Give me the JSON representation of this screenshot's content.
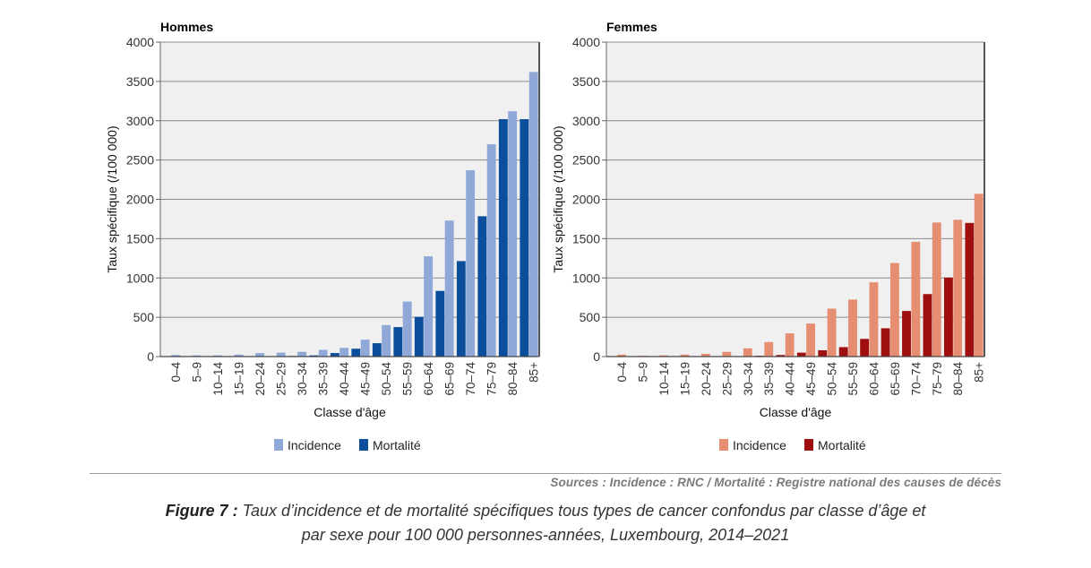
{
  "figure": {
    "sources": "Sources : Incidence : RNC / Mortalité : Registre national des causes de décès",
    "caption_label": "Figure 7 :",
    "caption_line1": "Taux d’incidence et de mortalité spécifiques tous types de cancer confondus par classe d’âge et",
    "caption_line2": "par sexe pour 100 000 personnes-années, Luxembourg, 2014–2021"
  },
  "chart_data": [
    {
      "type": "bar",
      "title": "Hommes",
      "xlabel": "Classe d'âge",
      "ylabel": "Taux spécifique (/100 000)",
      "ylim": [
        0,
        4000
      ],
      "yticks": [
        0,
        500,
        1000,
        1500,
        2000,
        2500,
        3000,
        3500,
        4000
      ],
      "grid": true,
      "legend_position": "bottom",
      "categories": [
        "0–4",
        "5–9",
        "10–14",
        "15–19",
        "20–24",
        "25–29",
        "30–34",
        "35–39",
        "40–44",
        "45–49",
        "50–54",
        "55–59",
        "60–64",
        "65–69",
        "70–74",
        "75–79",
        "80–84",
        "85+"
      ],
      "series": [
        {
          "name": "Incidence",
          "color": "#8FA8D8",
          "values": [
            20,
            15,
            15,
            25,
            45,
            50,
            60,
            85,
            110,
            215,
            400,
            700,
            1275,
            1730,
            2370,
            2700,
            3120,
            3620
          ]
        },
        {
          "name": "Mortalité",
          "color": "#0B4F9C",
          "values": [
            3,
            3,
            3,
            3,
            5,
            5,
            8,
            15,
            45,
            100,
            170,
            375,
            505,
            835,
            1215,
            1785,
            3020,
            3020
          ]
        }
      ]
    },
    {
      "type": "bar",
      "title": "Femmes",
      "xlabel": "Classe d'âge",
      "ylabel": "Taux spécifique (/100 000)",
      "ylim": [
        0,
        4000
      ],
      "yticks": [
        0,
        500,
        1000,
        1500,
        2000,
        2500,
        3000,
        3500,
        4000
      ],
      "grid": true,
      "legend_position": "bottom",
      "categories": [
        "0–4",
        "5–9",
        "10–14",
        "15–19",
        "20–24",
        "25–29",
        "30–34",
        "35–39",
        "40–44",
        "45–49",
        "50–54",
        "55–59",
        "60–64",
        "65–69",
        "70–74",
        "75–79",
        "80–84",
        "85+"
      ],
      "series": [
        {
          "name": "Incidence",
          "color": "#E58E72",
          "values": [
            25,
            10,
            15,
            25,
            35,
            60,
            105,
            185,
            295,
            420,
            610,
            725,
            945,
            1190,
            1460,
            1705,
            1740,
            2070
          ]
        },
        {
          "name": "Mortalité",
          "color": "#A00F0F",
          "values": [
            3,
            3,
            3,
            3,
            3,
            5,
            5,
            10,
            20,
            50,
            80,
            120,
            225,
            360,
            580,
            795,
            1005,
            1700
          ]
        }
      ]
    }
  ]
}
